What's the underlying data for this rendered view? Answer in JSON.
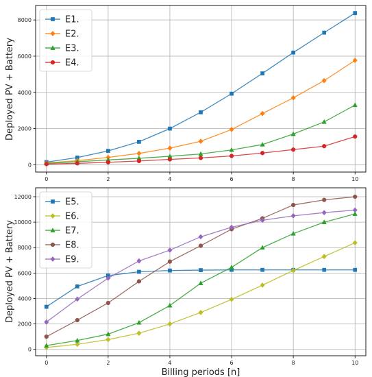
{
  "chart_data": [
    {
      "type": "line",
      "title": "",
      "xlabel": "",
      "ylabel": "Deployed PV + Battery",
      "x": [
        0,
        1,
        2,
        3,
        4,
        5,
        6,
        7,
        8,
        9,
        10
      ],
      "xlim": [
        -0.35,
        10.35
      ],
      "ylim": [
        -400,
        8800
      ],
      "xticks": [
        0,
        2,
        4,
        6,
        8,
        10
      ],
      "yticks": [
        0,
        2000,
        4000,
        6000,
        8000
      ],
      "grid": true,
      "legend_position": "top-left",
      "series": [
        {
          "name": "E1.",
          "color": "#1f77b4",
          "marker": "square",
          "values": [
            150,
            400,
            770,
            1270,
            2000,
            2900,
            3930,
            5050,
            6200,
            7300,
            8380
          ]
        },
        {
          "name": "E2.",
          "color": "#ff7f0e",
          "marker": "diamond",
          "values": [
            100,
            230,
            410,
            630,
            920,
            1300,
            1950,
            2830,
            3700,
            4650,
            5770
          ]
        },
        {
          "name": "E3.",
          "color": "#2ca02c",
          "marker": "triangle",
          "values": [
            80,
            170,
            270,
            360,
            470,
            600,
            820,
            1120,
            1700,
            2370,
            3300
          ]
        },
        {
          "name": "E4.",
          "color": "#d62728",
          "marker": "circle",
          "values": [
            40,
            80,
            140,
            210,
            300,
            380,
            490,
            650,
            840,
            1030,
            1560
          ]
        }
      ]
    },
    {
      "type": "line",
      "title": "",
      "xlabel": "Billing periods [n]",
      "ylabel": "Deployed PV + Battery",
      "x": [
        0,
        1,
        2,
        3,
        4,
        5,
        6,
        7,
        8,
        9,
        10
      ],
      "xlim": [
        -0.35,
        10.35
      ],
      "ylim": [
        -500,
        12700
      ],
      "xticks": [
        0,
        2,
        4,
        6,
        8,
        10
      ],
      "yticks": [
        0,
        2000,
        4000,
        6000,
        8000,
        10000,
        12000
      ],
      "grid": true,
      "legend_position": "top-left",
      "series": [
        {
          "name": "E5.",
          "color": "#1f77b4",
          "marker": "square",
          "values": [
            3350,
            4950,
            5800,
            6100,
            6200,
            6230,
            6250,
            6250,
            6250,
            6250,
            6250
          ]
        },
        {
          "name": "E6.",
          "color": "#bcbd22",
          "marker": "diamond",
          "values": [
            150,
            400,
            770,
            1270,
            2000,
            2900,
            3930,
            5050,
            6200,
            7300,
            8380
          ]
        },
        {
          "name": "E7.",
          "color": "#2ca02c",
          "marker": "triangle",
          "values": [
            300,
            700,
            1200,
            2100,
            3450,
            5200,
            6450,
            8000,
            9100,
            10000,
            10650
          ]
        },
        {
          "name": "E8.",
          "color": "#8c564b",
          "marker": "circle",
          "values": [
            1000,
            2300,
            3650,
            5350,
            6900,
            8150,
            9450,
            10300,
            11350,
            11750,
            12000
          ]
        },
        {
          "name": "E9.",
          "color": "#9467bd",
          "marker": "diamond",
          "values": [
            2150,
            3950,
            5600,
            6950,
            7800,
            8850,
            9600,
            10150,
            10500,
            10750,
            10950
          ]
        }
      ]
    }
  ]
}
